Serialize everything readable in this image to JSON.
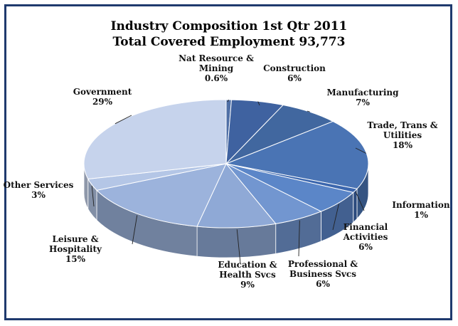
{
  "chart_data": {
    "type": "pie",
    "title": "Industry Composition 1st Qtr 2011",
    "subtitle": "Total Covered Employment 93,773",
    "slices": [
      {
        "name": "Nat Resource & Mining",
        "label_lines": [
          "Nat Resource &",
          "Mining"
        ],
        "pct_label": "0.6%",
        "value": 0.6,
        "color": "#4f6fa6"
      },
      {
        "name": "Construction",
        "label_lines": [
          "Construction"
        ],
        "pct_label": "6%",
        "value": 6,
        "color": "#3f62a0"
      },
      {
        "name": "Manufacturing",
        "label_lines": [
          "Manufacturing"
        ],
        "pct_label": "7%",
        "value": 7,
        "color": "#41679f"
      },
      {
        "name": "Trade, Trans & Utilities",
        "label_lines": [
          "Trade, Trans &",
          "Utilities"
        ],
        "pct_label": "18%",
        "value": 18,
        "color": "#4a74b4"
      },
      {
        "name": "Information",
        "label_lines": [
          "Information"
        ],
        "pct_label": "1%",
        "value": 1,
        "color": "#3c67ae"
      },
      {
        "name": "Financial Activities",
        "label_lines": [
          "Financial",
          "Activities"
        ],
        "pct_label": "6%",
        "value": 6,
        "color": "#5b86c8"
      },
      {
        "name": "Professional & Business Svcs",
        "label_lines": [
          "Professional &",
          "Business Svcs"
        ],
        "pct_label": "6%",
        "value": 6,
        "color": "#7296d0"
      },
      {
        "name": "Education & Health Svcs",
        "label_lines": [
          "Education &",
          "Health Svcs"
        ],
        "pct_label": "9%",
        "value": 9,
        "color": "#8fa9d6"
      },
      {
        "name": "Leisure & Hospitality",
        "label_lines": [
          "Leisure &",
          "Hospitality"
        ],
        "pct_label": "15%",
        "value": 15,
        "color": "#9cb3dc"
      },
      {
        "name": "Other Services",
        "label_lines": [
          "Other Services"
        ],
        "pct_label": "3%",
        "value": 3,
        "color": "#b4c6e6"
      },
      {
        "name": "Government",
        "label_lines": [
          "Government"
        ],
        "pct_label": "29%",
        "value": 29,
        "color": "#c6d3ec"
      }
    ],
    "legend": "none",
    "border_color": "#1f3a6e"
  }
}
